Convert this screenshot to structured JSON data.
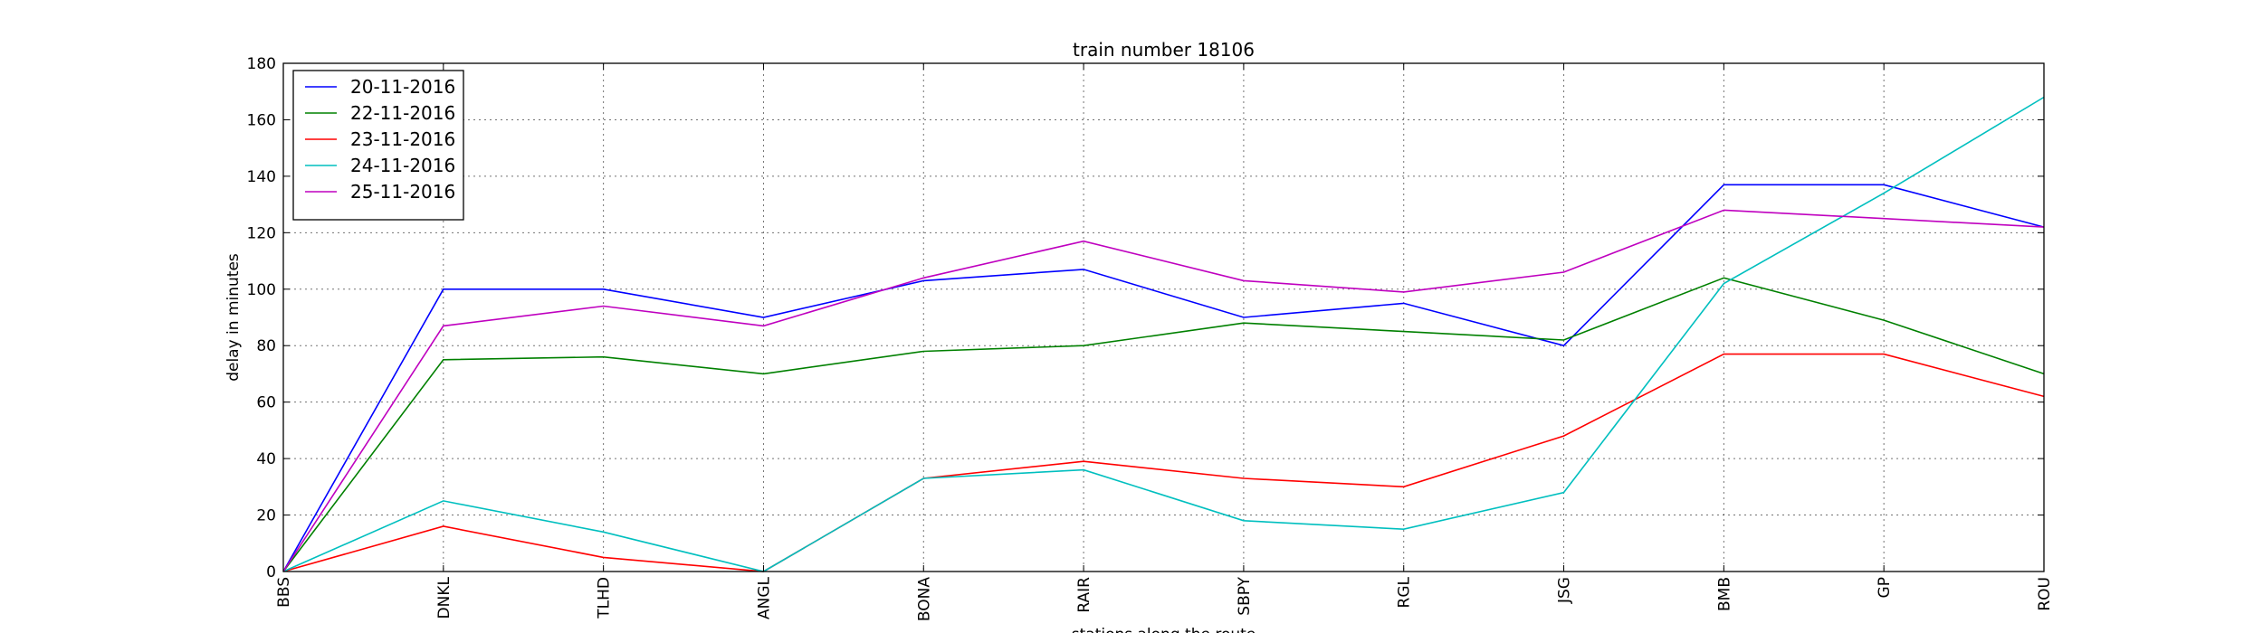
{
  "chart_data": {
    "type": "line",
    "title": "train number 18106",
    "xlabel": "stations along the route",
    "ylabel": "delay in minutes",
    "ylim": [
      0,
      180
    ],
    "yticks": [
      0,
      20,
      40,
      60,
      80,
      100,
      120,
      140,
      160,
      180
    ],
    "grid": true,
    "legend_position": "top-left",
    "categories": [
      "BBS",
      "DNKL",
      "TLHD",
      "ANGL",
      "BONA",
      "RAIR",
      "SBPY",
      "RGL",
      "JSG",
      "BMB",
      "GP",
      "ROU"
    ],
    "series": [
      {
        "name": "20-11-2016",
        "color": "#0000ff",
        "values": [
          0,
          100,
          100,
          90,
          103,
          107,
          90,
          95,
          80,
          137,
          137,
          122
        ]
      },
      {
        "name": "22-11-2016",
        "color": "#008000",
        "values": [
          0,
          75,
          76,
          70,
          78,
          80,
          88,
          85,
          82,
          104,
          89,
          70
        ]
      },
      {
        "name": "23-11-2016",
        "color": "#ff0000",
        "values": [
          0,
          16,
          5,
          0,
          33,
          39,
          33,
          30,
          48,
          77,
          77,
          62
        ]
      },
      {
        "name": "24-11-2016",
        "color": "#00bfbf",
        "values": [
          0,
          25,
          14,
          0,
          33,
          36,
          18,
          15,
          28,
          102,
          134,
          168
        ]
      },
      {
        "name": "25-11-2016",
        "color": "#bf00bf",
        "values": [
          0,
          87,
          94,
          87,
          104,
          117,
          103,
          99,
          106,
          128,
          125,
          122
        ]
      }
    ]
  }
}
